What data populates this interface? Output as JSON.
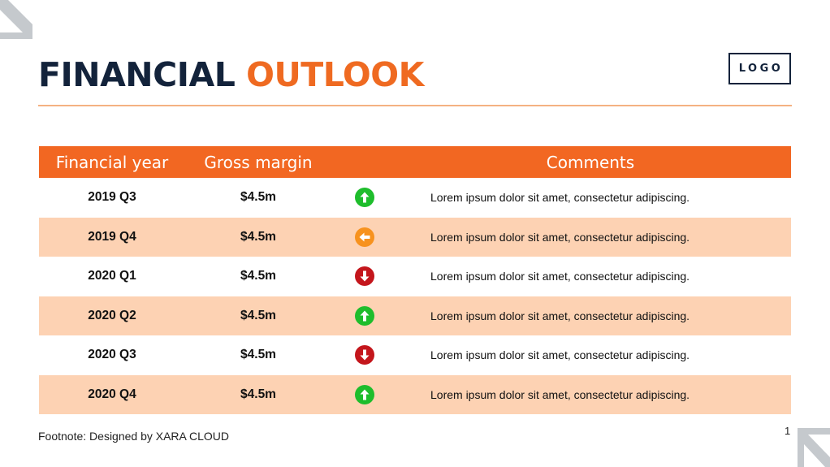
{
  "title": {
    "part1": "FINANCIAL",
    "part2": "OUTLOOK"
  },
  "logo": "LOGO",
  "colors": {
    "accent": "#f26722",
    "navy": "#13233b",
    "row_shade": "#fdd2b3",
    "up": "#1ebd2c",
    "left": "#f7921e",
    "down": "#c4161c"
  },
  "table": {
    "headers": {
      "year": "Financial year",
      "margin": "Gross margin",
      "trend": "",
      "comments": "Comments"
    },
    "rows": [
      {
        "year": "2019 Q3",
        "margin": "$4.5m",
        "trend": "arrow-up-icon",
        "comment": "Lorem ipsum dolor sit amet, consectetur adipiscing."
      },
      {
        "year": "2019 Q4",
        "margin": "$4.5m",
        "trend": "arrow-left-icon",
        "comment": "Lorem ipsum dolor sit amet, consectetur adipiscing."
      },
      {
        "year": "2020 Q1",
        "margin": "$4.5m",
        "trend": "arrow-down-icon",
        "comment": "Lorem ipsum dolor sit amet, consectetur adipiscing."
      },
      {
        "year": "2020 Q2",
        "margin": "$4.5m",
        "trend": "arrow-up-icon",
        "comment": "Lorem ipsum dolor sit amet, consectetur adipiscing."
      },
      {
        "year": "2020 Q3",
        "margin": "$4.5m",
        "trend": "arrow-down-icon",
        "comment": "Lorem ipsum dolor sit amet, consectetur adipiscing."
      },
      {
        "year": "2020 Q4",
        "margin": "$4.5m",
        "trend": "arrow-up-icon",
        "comment": "Lorem ipsum dolor sit amet, consectetur adipiscing."
      }
    ]
  },
  "footnote": "Footnote: Designed by XARA CLOUD",
  "page_number": "1"
}
